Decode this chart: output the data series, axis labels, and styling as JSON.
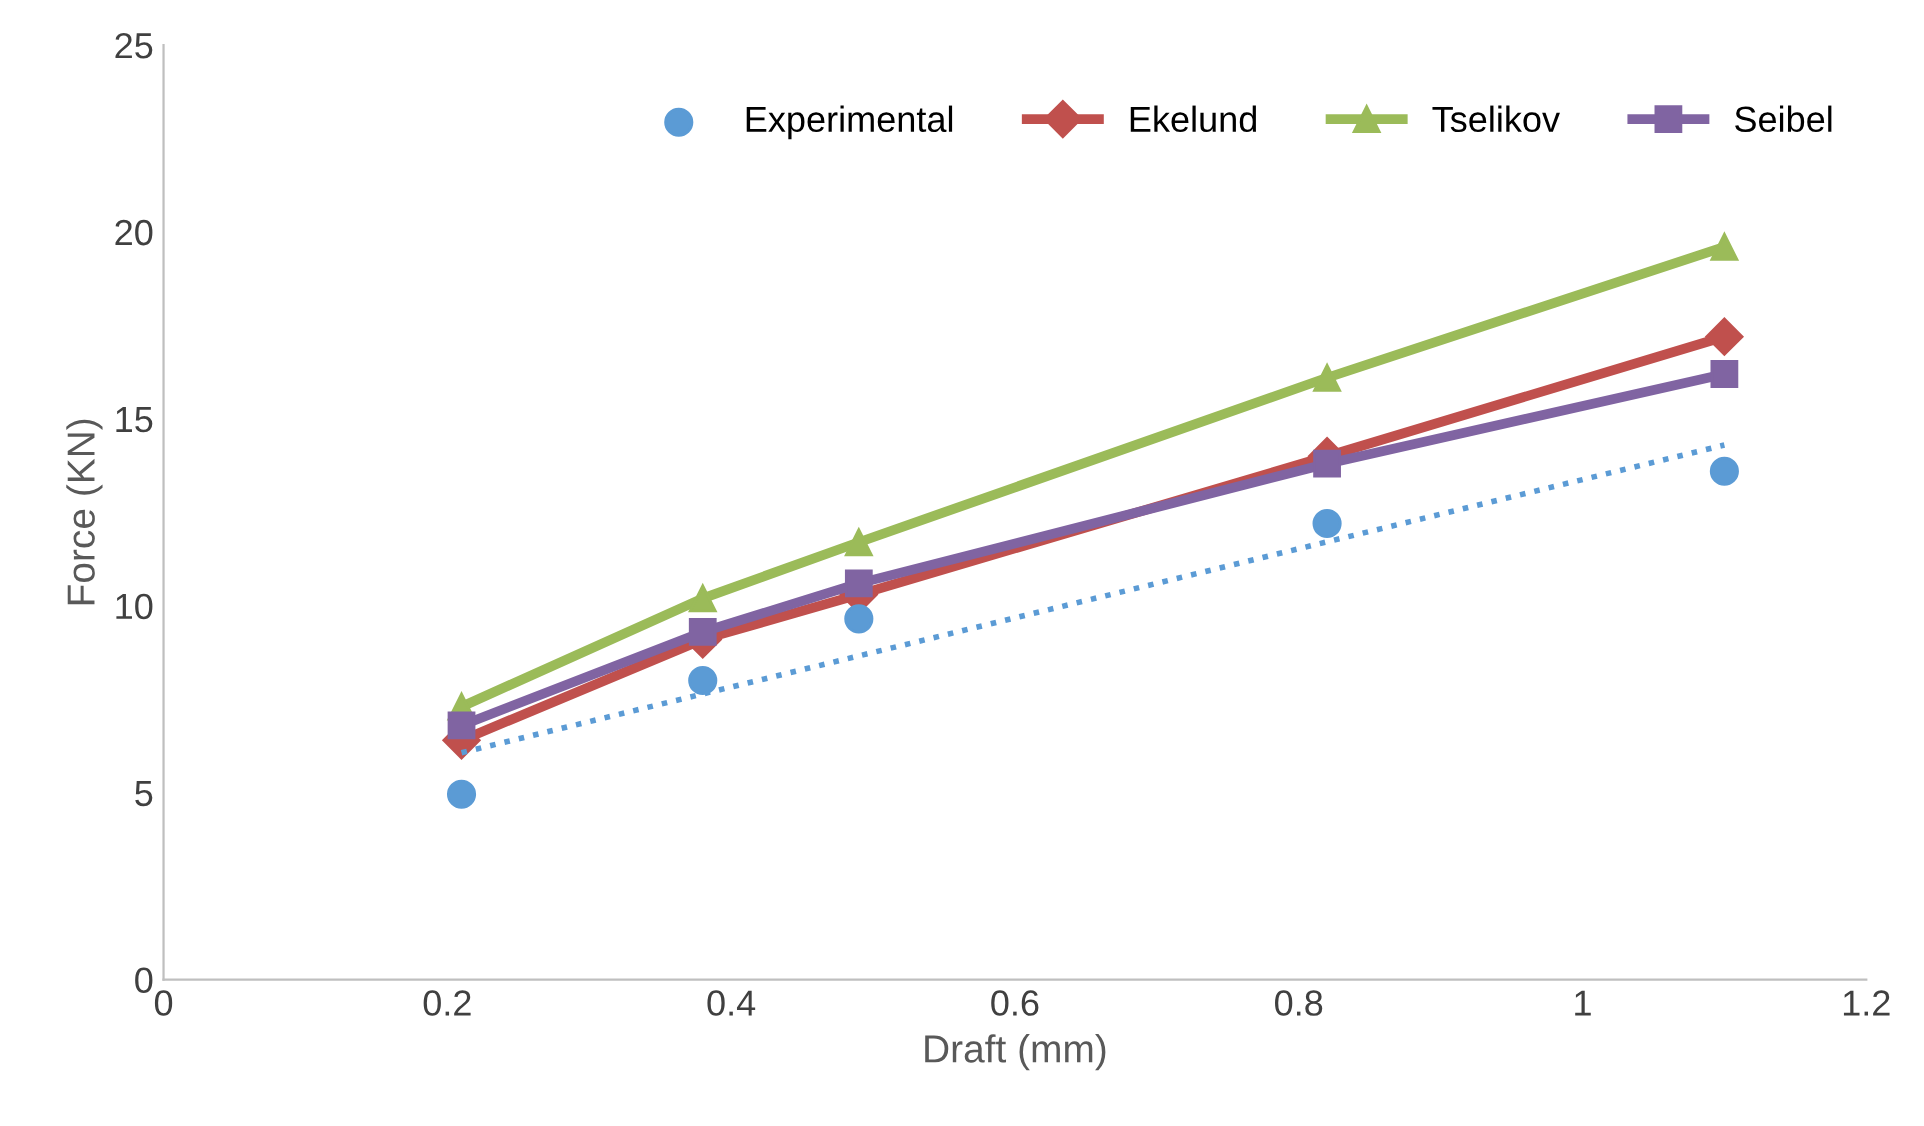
{
  "chart_data": {
    "type": "line",
    "xlabel": "Draft (mm)",
    "ylabel": "Force (KN)",
    "xlim": [
      0,
      1.2
    ],
    "xticks": [
      0,
      0.2,
      0.4,
      0.6,
      0.8,
      1,
      1.2
    ],
    "ylim": [
      0,
      25
    ],
    "yticks": [
      0,
      5,
      10,
      15,
      20,
      25
    ],
    "grid": false,
    "legend": "top right",
    "series": [
      {
        "name": "Experimental",
        "type": "scatter",
        "color": "#5b9bd5",
        "marker": "circle",
        "x": [
          0.21,
          0.38,
          0.49,
          0.82,
          1.1
        ],
        "values": [
          4.96,
          8.0,
          9.65,
          12.2,
          13.6
        ]
      },
      {
        "name": "Ekelund",
        "color": "#c0504d",
        "marker": "diamond",
        "line_style": "solid",
        "x": [
          0.21,
          0.38,
          0.49,
          0.82,
          1.1
        ],
        "values": [
          6.4,
          9.1,
          10.3,
          14.0,
          17.2
        ]
      },
      {
        "name": "Tselikov",
        "color": "#9bbb59",
        "marker": "triangle",
        "line_style": "solid",
        "x": [
          0.21,
          0.38,
          0.49,
          0.82,
          1.1
        ],
        "values": [
          7.3,
          10.2,
          11.7,
          16.1,
          19.6
        ]
      },
      {
        "name": "Seibel",
        "color": "#8064a2",
        "marker": "square",
        "line_style": "solid",
        "x": [
          0.21,
          0.38,
          0.49,
          0.82,
          1.1
        ],
        "values": [
          6.8,
          9.3,
          10.6,
          13.8,
          16.2
        ]
      },
      {
        "color": "#5b9bd5",
        "marker": "none",
        "line_style": "dotted",
        "x": [
          0.21,
          1.1
        ],
        "values": [
          6.07,
          14.3
        ]
      }
    ]
  }
}
